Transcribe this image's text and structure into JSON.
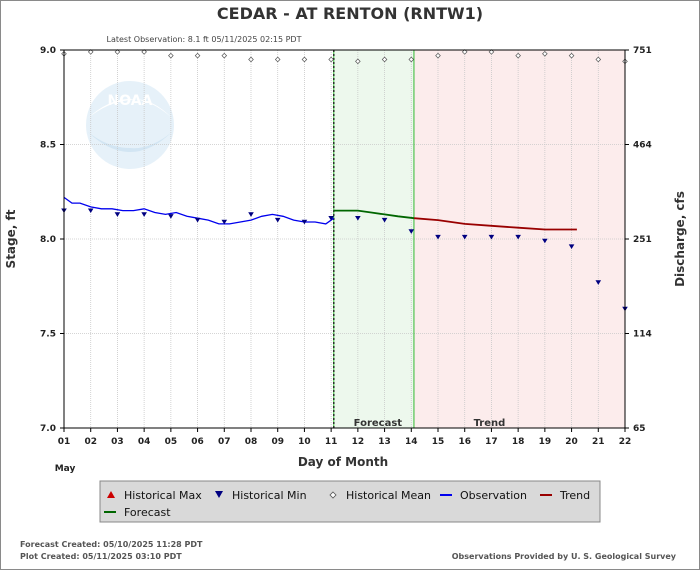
{
  "chart_data": {
    "type": "line",
    "title": "CEDAR - AT RENTON  (RNTW1)",
    "subtitle": "Latest Observation: 8.1 ft 05/11/2025 02:15 PDT",
    "xlabel": "Day of Month",
    "month_label": "May",
    "ylabel_left": "Stage, ft",
    "ylabel_right": "Discharge, cfs",
    "xlim": [
      1,
      22
    ],
    "ylim": [
      7.0,
      9.0
    ],
    "x_ticks": [
      "01",
      "02",
      "03",
      "04",
      "05",
      "06",
      "07",
      "08",
      "09",
      "10",
      "11",
      "12",
      "13",
      "14",
      "15",
      "16",
      "17",
      "18",
      "19",
      "20",
      "21",
      "22"
    ],
    "y_ticks": [
      "7.0",
      "7.5",
      "8.0",
      "8.5",
      "9.0"
    ],
    "y_ticks_right": [
      {
        "stage": 7.0,
        "label": "65"
      },
      {
        "stage": 7.5,
        "label": "114"
      },
      {
        "stage": 8.0,
        "label": "251"
      },
      {
        "stage": 8.5,
        "label": "464"
      },
      {
        "stage": 9.0,
        "label": "751"
      }
    ],
    "grid": true,
    "forecast_region": {
      "start": 11.1,
      "end": 14.1,
      "label": "Forecast",
      "color": "#edf8ed"
    },
    "trend_region": {
      "start": 14.1,
      "end": 22,
      "label": "Trend",
      "color": "#fcecec"
    },
    "now_line_x": 11.1,
    "series": [
      {
        "name": "Observation",
        "color": "#0000ee",
        "x": [
          1.0,
          1.3,
          1.6,
          2.0,
          2.4,
          2.8,
          3.2,
          3.6,
          4.0,
          4.4,
          4.8,
          5.2,
          5.6,
          6.0,
          6.4,
          6.8,
          7.2,
          7.6,
          8.0,
          8.4,
          8.8,
          9.2,
          9.6,
          10.0,
          10.4,
          10.8,
          11.1
        ],
        "y": [
          8.22,
          8.19,
          8.19,
          8.17,
          8.16,
          8.16,
          8.15,
          8.15,
          8.16,
          8.14,
          8.13,
          8.14,
          8.12,
          8.11,
          8.1,
          8.08,
          8.08,
          8.09,
          8.1,
          8.12,
          8.13,
          8.12,
          8.1,
          8.09,
          8.09,
          8.08,
          8.11
        ]
      },
      {
        "name": "Forecast",
        "color": "#006600",
        "x": [
          11.1,
          11.5,
          12.0,
          12.5,
          13.0,
          13.5,
          14.1
        ],
        "y": [
          8.15,
          8.15,
          8.15,
          8.14,
          8.13,
          8.12,
          8.11
        ]
      },
      {
        "name": "Trend",
        "color": "#990000",
        "x": [
          14.1,
          15.0,
          16.0,
          17.0,
          18.0,
          19.0,
          20.0,
          20.2
        ],
        "y": [
          8.11,
          8.1,
          8.08,
          8.07,
          8.06,
          8.05,
          8.05,
          8.05
        ]
      }
    ],
    "historical_min": {
      "name": "Historical Min",
      "color": "#000080",
      "x": [
        1,
        2,
        3,
        4,
        5,
        6,
        7,
        8,
        9,
        10,
        11,
        12,
        13,
        14,
        15,
        16,
        17,
        18,
        19,
        20,
        21,
        22
      ],
      "y": [
        8.15,
        8.15,
        8.13,
        8.13,
        8.12,
        8.1,
        8.09,
        8.13,
        8.1,
        8.09,
        8.11,
        8.11,
        8.1,
        8.04,
        8.01,
        8.01,
        8.01,
        8.01,
        7.99,
        7.96,
        7.77,
        7.63
      ]
    },
    "historical_mean": {
      "name": "Historical Mean",
      "color": "#555555",
      "x": [
        1,
        2,
        3,
        4,
        5,
        6,
        7,
        8,
        9,
        10,
        11,
        12,
        13,
        14,
        15,
        16,
        17,
        18,
        19,
        20,
        21,
        22
      ],
      "y": [
        8.98,
        8.99,
        8.99,
        8.99,
        8.97,
        8.97,
        8.97,
        8.95,
        8.95,
        8.95,
        8.95,
        8.94,
        8.95,
        8.95,
        8.97,
        8.99,
        8.99,
        8.97,
        8.98,
        8.97,
        8.95,
        8.94
      ]
    },
    "legend": {
      "placement": "bottom",
      "items": [
        {
          "label": "Historical Max",
          "symbol": "triangle-up",
          "color": "#cc0000"
        },
        {
          "label": "Historical Min",
          "symbol": "triangle-down",
          "color": "#000080"
        },
        {
          "label": "Historical Mean",
          "symbol": "diamond",
          "color": "#555555"
        },
        {
          "label": "Observation",
          "symbol": "line",
          "color": "#0000ee"
        },
        {
          "label": "Trend",
          "symbol": "line",
          "color": "#990000"
        },
        {
          "label": "Forecast",
          "symbol": "line",
          "color": "#006600"
        }
      ]
    },
    "footer": {
      "forecast_created": "Forecast Created: 05/10/2025 11:28 PDT",
      "plot_created": "Plot Created: 05/11/2025 03:10 PDT",
      "credit": "Observations Provided by U. S. Geological Survey"
    },
    "logo_text": "NOAA"
  }
}
